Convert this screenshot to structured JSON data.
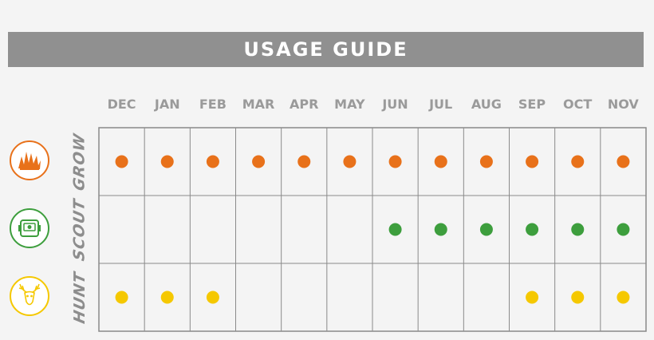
{
  "header": {
    "title": "USAGE GUIDE"
  },
  "chart_data": {
    "type": "table",
    "title": "USAGE GUIDE",
    "columns": [
      "DEC",
      "JAN",
      "FEB",
      "MAR",
      "APR",
      "MAY",
      "JUN",
      "JUL",
      "AUG",
      "SEP",
      "OCT",
      "NOV"
    ],
    "rows": [
      {
        "name": "GROW",
        "icon": "antler-growth-icon",
        "color": "#e8711a",
        "active": [
          1,
          1,
          1,
          1,
          1,
          1,
          1,
          1,
          1,
          1,
          1,
          1
        ]
      },
      {
        "name": "SCOUT",
        "icon": "trail-camera-icon",
        "color": "#3d9e3d",
        "active": [
          0,
          0,
          0,
          0,
          0,
          0,
          1,
          1,
          1,
          1,
          1,
          1
        ]
      },
      {
        "name": "HUNT",
        "icon": "deer-skull-icon",
        "color": "#f5c800",
        "active": [
          1,
          1,
          1,
          0,
          0,
          0,
          0,
          0,
          0,
          1,
          1,
          1
        ]
      }
    ]
  },
  "colors": {
    "grid": "#8a8a8a",
    "cell": "#f4f4f4",
    "header": "#909090"
  }
}
